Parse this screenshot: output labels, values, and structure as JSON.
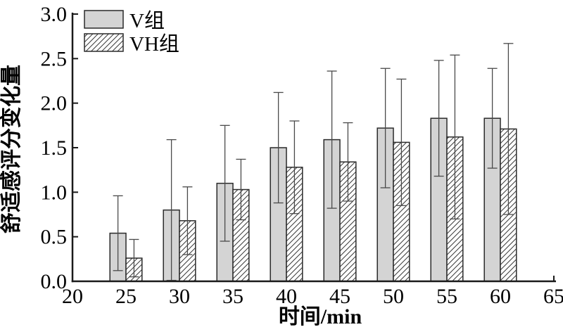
{
  "figure": {
    "background": "#ffffff"
  },
  "chart_data": {
    "type": "bar",
    "title": "",
    "xlabel": "时间/min",
    "ylabel": "舒适感评分变化量",
    "xlim": [
      20,
      65
    ],
    "ylim": [
      0.0,
      3.0
    ],
    "x_ticks": [
      20,
      25,
      30,
      35,
      40,
      45,
      50,
      55,
      60,
      65
    ],
    "y_ticks": [
      0.0,
      0.5,
      1.0,
      1.5,
      2.0,
      2.5,
      3.0
    ],
    "grid": false,
    "legend_position": "top-left-inside",
    "categories": [
      25,
      30,
      35,
      40,
      45,
      50,
      55,
      60
    ],
    "bar_width_minutes": 1.5,
    "error_bars": "symmetric",
    "series": [
      {
        "name": "V组",
        "style": "solid",
        "fill": "#d4d4d4",
        "values": [
          0.54,
          0.8,
          1.1,
          1.5,
          1.59,
          1.72,
          1.83,
          1.83
        ],
        "errors": [
          0.42,
          0.79,
          0.65,
          0.62,
          0.77,
          0.67,
          0.65,
          0.56
        ]
      },
      {
        "name": "VH组",
        "style": "hatched",
        "fill": "#ffffff",
        "hatch": "diagonal-forward-slash",
        "values": [
          0.26,
          0.68,
          1.03,
          1.28,
          1.34,
          1.56,
          1.62,
          1.71
        ],
        "errors": [
          0.21,
          0.38,
          0.34,
          0.52,
          0.44,
          0.71,
          0.92,
          0.96
        ]
      }
    ],
    "colors": {
      "bar_border": "#2a2a2a",
      "hatch_line": "#3a3a3a",
      "error_bar": "#4a4a4a",
      "axis": "#1a1a1a",
      "text": "#000000"
    }
  }
}
